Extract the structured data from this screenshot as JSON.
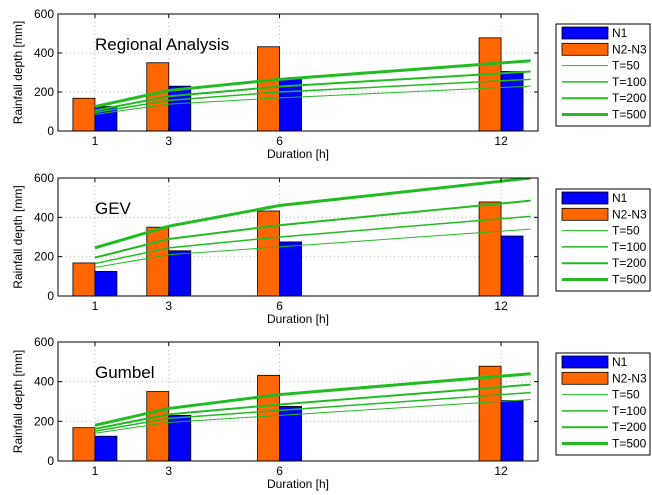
{
  "colors": {
    "n1": "#0000ff",
    "n2n3": "#ff6600",
    "curve": "#22bb22",
    "grid": "#bbbbbb",
    "axis": "#000000"
  },
  "chart_data": [
    {
      "type": "bar",
      "title": "Regional Analysis",
      "xlabel": "Duration [h]",
      "ylabel": "Rainfall depth [mm]",
      "ylim": [
        0,
        600
      ],
      "yticks": [
        0,
        200,
        400,
        600
      ],
      "x": [
        1,
        3,
        6,
        12
      ],
      "grid": true,
      "legend_position": "right",
      "bars": [
        {
          "name": "N1",
          "color": "#0000ff",
          "values": [
            125,
            230,
            270,
            305
          ]
        },
        {
          "name": "N2-N3",
          "color": "#ff6600",
          "values": [
            168,
            350,
            432,
            478
          ]
        }
      ],
      "series": [
        {
          "name": "T=50",
          "type": "line",
          "width": 1,
          "x": [
            1,
            3,
            6,
            12.8
          ],
          "values": [
            85,
            138,
            170,
            230
          ]
        },
        {
          "name": "T=100",
          "type": "line",
          "width": 1.5,
          "x": [
            1,
            3,
            6,
            12.8
          ],
          "values": [
            95,
            157,
            200,
            265
          ]
        },
        {
          "name": "T=200",
          "type": "line",
          "width": 2,
          "x": [
            1,
            3,
            6,
            12.8
          ],
          "values": [
            105,
            178,
            228,
            305
          ]
        },
        {
          "name": "T=500",
          "type": "line",
          "width": 3,
          "x": [
            1,
            3,
            6,
            12.8
          ],
          "values": [
            125,
            208,
            265,
            360
          ]
        }
      ]
    },
    {
      "type": "bar",
      "title": "GEV",
      "xlabel": "Duration [h]",
      "ylabel": "Rainfall depth [mm]",
      "ylim": [
        0,
        600
      ],
      "yticks": [
        0,
        200,
        400,
        600
      ],
      "x": [
        1,
        3,
        6,
        12
      ],
      "grid": true,
      "legend_position": "right",
      "bars": [
        {
          "name": "N1",
          "color": "#0000ff",
          "values": [
            125,
            230,
            275,
            305
          ]
        },
        {
          "name": "N2-N3",
          "color": "#ff6600",
          "values": [
            168,
            350,
            432,
            478
          ]
        }
      ],
      "series": [
        {
          "name": "T=50",
          "type": "line",
          "width": 1,
          "x": [
            1,
            3,
            6,
            12.8
          ],
          "values": [
            145,
            210,
            250,
            340
          ]
        },
        {
          "name": "T=100",
          "type": "line",
          "width": 1.5,
          "x": [
            1,
            3,
            6,
            12.8
          ],
          "values": [
            165,
            245,
            300,
            405
          ]
        },
        {
          "name": "T=200",
          "type": "line",
          "width": 2,
          "x": [
            1,
            3,
            6,
            12.8
          ],
          "values": [
            195,
            290,
            360,
            485
          ]
        },
        {
          "name": "T=500",
          "type": "line",
          "width": 3,
          "x": [
            1,
            3,
            6,
            12.8
          ],
          "values": [
            245,
            355,
            460,
            600
          ]
        }
      ]
    },
    {
      "type": "bar",
      "title": "Gumbel",
      "xlabel": "Duration [h]",
      "ylabel": "Rainfall depth [mm]",
      "ylim": [
        0,
        600
      ],
      "yticks": [
        0,
        200,
        400,
        600
      ],
      "x": [
        1,
        3,
        6,
        12
      ],
      "grid": true,
      "legend_position": "right",
      "bars": [
        {
          "name": "N1",
          "color": "#0000ff",
          "values": [
            125,
            230,
            275,
            305
          ]
        },
        {
          "name": "N2-N3",
          "color": "#ff6600",
          "values": [
            168,
            350,
            432,
            478
          ]
        }
      ],
      "series": [
        {
          "name": "T=50",
          "type": "line",
          "width": 1,
          "x": [
            1,
            3,
            6,
            12.8
          ],
          "values": [
            140,
            195,
            230,
            310
          ]
        },
        {
          "name": "T=100",
          "type": "line",
          "width": 1.5,
          "x": [
            1,
            3,
            6,
            12.8
          ],
          "values": [
            150,
            215,
            255,
            345
          ]
        },
        {
          "name": "T=200",
          "type": "line",
          "width": 2,
          "x": [
            1,
            3,
            6,
            12.8
          ],
          "values": [
            162,
            235,
            285,
            385
          ]
        },
        {
          "name": "T=500",
          "type": "line",
          "width": 3,
          "x": [
            1,
            3,
            6,
            12.8
          ],
          "values": [
            180,
            265,
            335,
            440
          ]
        }
      ]
    }
  ]
}
